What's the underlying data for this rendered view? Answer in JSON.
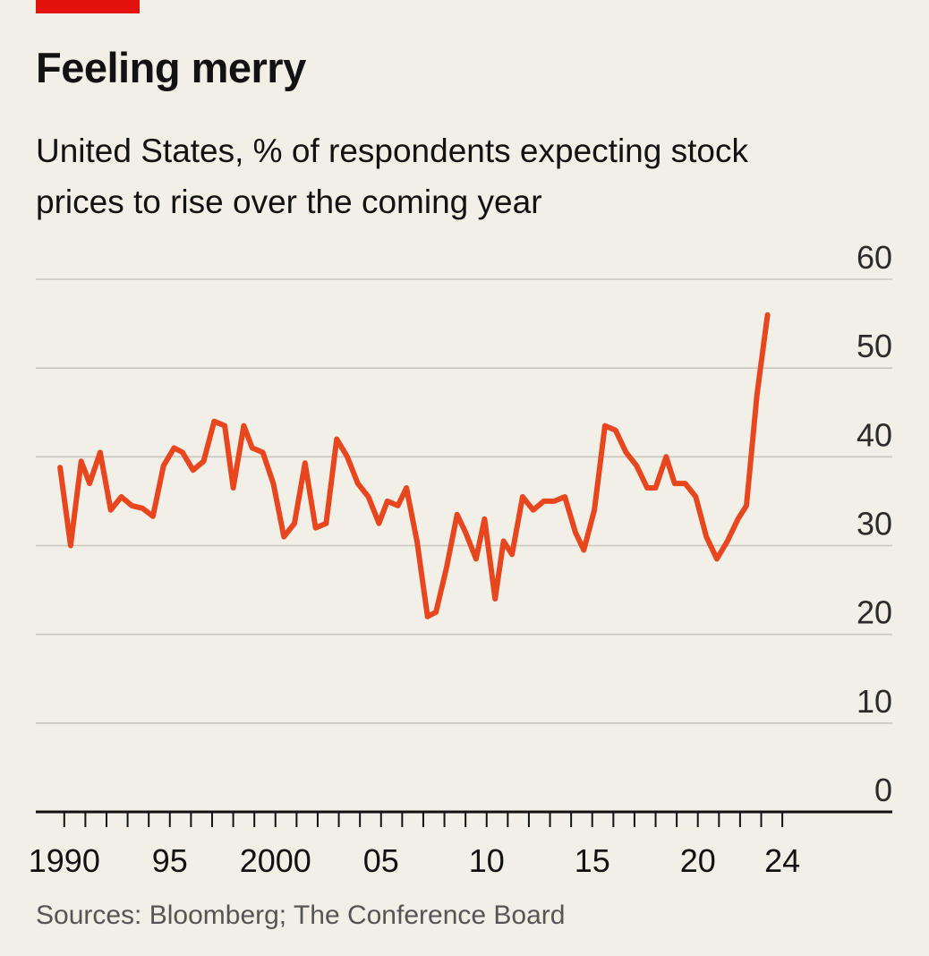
{
  "chart_data": {
    "type": "line",
    "title": "Feeling merry",
    "subtitle": "United States, % of respondents expecting stock prices to rise over the coming year",
    "source": "Sources: Bloomberg; The Conference Board",
    "ylim": [
      0,
      60
    ],
    "yticks": [
      0,
      10,
      20,
      30,
      40,
      50,
      60
    ],
    "xlim": [
      1989.5,
      2026
    ],
    "xtick_labels": [
      {
        "x": 1990,
        "label": "1990"
      },
      {
        "x": 1995,
        "label": "95"
      },
      {
        "x": 2000,
        "label": "2000"
      },
      {
        "x": 2005,
        "label": "05"
      },
      {
        "x": 2010,
        "label": "10"
      },
      {
        "x": 2015,
        "label": "15"
      },
      {
        "x": 2020,
        "label": "20"
      },
      {
        "x": 2024,
        "label": "24"
      }
    ],
    "minor_ticks_from": 1990,
    "minor_ticks_to": 2024,
    "grid": true,
    "line_color": "#e8461f",
    "series": [
      {
        "name": "",
        "points": [
          [
            1989.8,
            38.8
          ],
          [
            1990.3,
            30
          ],
          [
            1990.8,
            39.5
          ],
          [
            1991.2,
            37
          ],
          [
            1991.7,
            40.5
          ],
          [
            1992.2,
            34
          ],
          [
            1992.7,
            35.5
          ],
          [
            1993.2,
            34.5
          ],
          [
            1993.7,
            34.2
          ],
          [
            1994.2,
            33.3
          ],
          [
            1994.7,
            39
          ],
          [
            1995.2,
            41
          ],
          [
            1995.6,
            40.5
          ],
          [
            1996.1,
            38.5
          ],
          [
            1996.6,
            39.5
          ],
          [
            1997.1,
            44
          ],
          [
            1997.6,
            43.5
          ],
          [
            1998.0,
            36.5
          ],
          [
            1998.5,
            43.5
          ],
          [
            1998.9,
            41
          ],
          [
            1999.4,
            40.5
          ],
          [
            1999.9,
            37
          ],
          [
            2000.4,
            31
          ],
          [
            2000.9,
            32.5
          ],
          [
            2001.4,
            39.3
          ],
          [
            2001.9,
            32
          ],
          [
            2002.4,
            32.5
          ],
          [
            2002.9,
            42
          ],
          [
            2003.4,
            40
          ],
          [
            2003.9,
            37
          ],
          [
            2004.4,
            35.5
          ],
          [
            2004.9,
            32.5
          ],
          [
            2005.3,
            35
          ],
          [
            2005.8,
            34.5
          ],
          [
            2006.2,
            36.5
          ],
          [
            2006.7,
            30.5
          ],
          [
            2007.2,
            22
          ],
          [
            2007.6,
            22.5
          ],
          [
            2008.1,
            27.5
          ],
          [
            2008.6,
            33.5
          ],
          [
            2009.0,
            31.5
          ],
          [
            2009.5,
            28.5
          ],
          [
            2009.9,
            33
          ],
          [
            2010.4,
            24
          ],
          [
            2010.8,
            30.5
          ],
          [
            2011.2,
            29
          ],
          [
            2011.7,
            35.5
          ],
          [
            2012.2,
            34
          ],
          [
            2012.7,
            35
          ],
          [
            2013.2,
            35
          ],
          [
            2013.7,
            35.5
          ],
          [
            2014.2,
            31.5
          ],
          [
            2014.6,
            29.5
          ],
          [
            2015.1,
            34
          ],
          [
            2015.6,
            43.5
          ],
          [
            2016.1,
            43
          ],
          [
            2016.6,
            40.5
          ],
          [
            2017.1,
            39
          ],
          [
            2017.6,
            36.5
          ],
          [
            2018.0,
            36.5
          ],
          [
            2018.5,
            40
          ],
          [
            2018.9,
            37
          ],
          [
            2019.4,
            37
          ],
          [
            2019.9,
            35.5
          ],
          [
            2020.4,
            31
          ],
          [
            2020.9,
            28.5
          ],
          [
            2021.4,
            30.5
          ],
          [
            2021.9,
            33
          ],
          [
            2022.3,
            34.5
          ],
          [
            2022.8,
            47
          ],
          [
            2023.3,
            56
          ]
        ]
      }
    ]
  }
}
